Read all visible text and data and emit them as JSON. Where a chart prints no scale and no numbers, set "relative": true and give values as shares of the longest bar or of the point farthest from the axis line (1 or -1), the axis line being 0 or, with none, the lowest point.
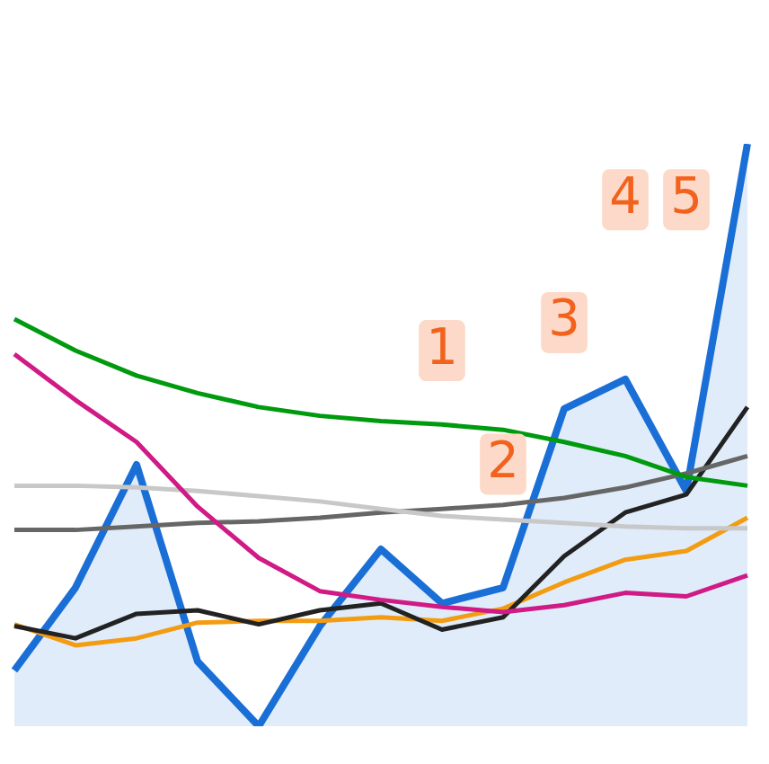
{
  "chart_data": {
    "type": "line",
    "relative": true,
    "categories": [
      null,
      null,
      null,
      null,
      null,
      null,
      null,
      null,
      null,
      null,
      null,
      null,
      null
    ],
    "series": [
      {
        "color": "#009a0f",
        "values": [
          0.699,
          0.645,
          0.602,
          0.572,
          0.548,
          0.533,
          0.524,
          0.518,
          0.509,
          0.488,
          0.464,
          0.428,
          0.413
        ]
      },
      {
        "color": "#d01a85",
        "values": [
          0.639,
          0.56,
          0.488,
          0.377,
          0.289,
          0.232,
          0.217,
          0.205,
          0.196,
          0.208,
          0.229,
          0.223,
          0.259
        ]
      },
      {
        "color": "#c8c8c8",
        "values": [
          0.413,
          0.413,
          0.41,
          0.404,
          0.395,
          0.386,
          0.373,
          0.361,
          0.355,
          0.349,
          0.343,
          0.34,
          0.34
        ]
      },
      {
        "color": "#666666",
        "values": [
          0.337,
          0.337,
          0.343,
          0.349,
          0.352,
          0.358,
          0.367,
          0.373,
          0.38,
          0.392,
          0.41,
          0.434,
          0.464
        ]
      },
      {
        "color": "#222222",
        "values": [
          0.172,
          0.151,
          0.193,
          0.199,
          0.175,
          0.199,
          0.211,
          0.166,
          0.187,
          0.292,
          0.367,
          0.398,
          0.548
        ]
      },
      {
        "color": "#f39c12",
        "values": [
          0.175,
          0.139,
          0.151,
          0.178,
          0.181,
          0.181,
          0.187,
          0.181,
          0.202,
          0.247,
          0.286,
          0.301,
          0.358
        ]
      },
      {
        "type": "area",
        "color": "#1a6fd6",
        "values": [
          0.096,
          0.238,
          0.449,
          0.111,
          0,
          0.172,
          0.304,
          0.211,
          0.238,
          0.545,
          0.596,
          0.404,
          1
        ]
      }
    ],
    "annotations": [
      {
        "text": "1",
        "y": 0.645
      },
      {
        "text": "2",
        "y": 0.45
      },
      {
        "text": "3",
        "y": 0.693
      },
      {
        "text": "4",
        "y": 0.904
      },
      {
        "text": "5",
        "y": 0.904
      }
    ],
    "marker": "none",
    "line_style": "solid",
    "grid": false,
    "legend": false
  }
}
